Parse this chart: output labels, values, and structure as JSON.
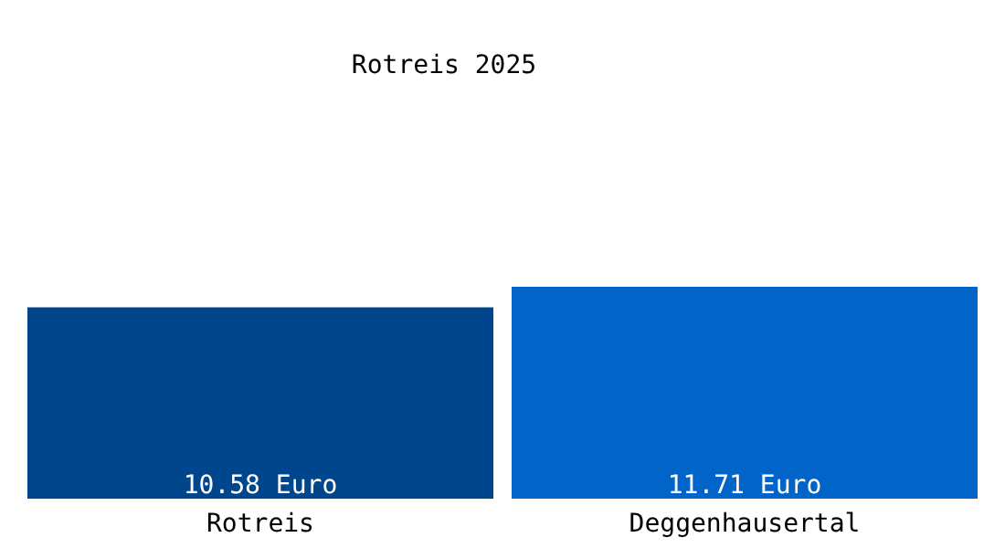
{
  "chart_data": {
    "type": "bar",
    "title": "Rotreis 2025",
    "categories": [
      "Rotreis",
      "Deggenhausertal"
    ],
    "values": [
      10.58,
      11.71
    ],
    "colors": [
      "#00468c",
      "#0064c8"
    ],
    "value_labels": [
      "10.58 Euro",
      "11.71 Euro"
    ],
    "grid": false,
    "legend": false
  }
}
